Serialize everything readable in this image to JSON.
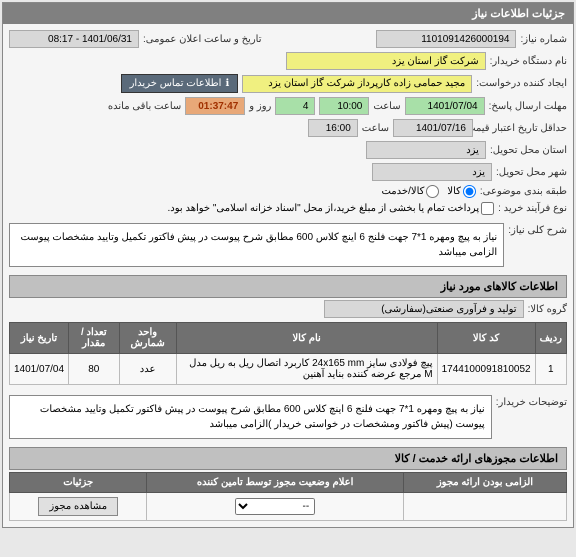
{
  "panel_title": "جزئیات اطلاعات نیاز",
  "labels": {
    "need_no": "شماره نیاز:",
    "pub_date": "تاریخ و ساعت اعلان عمومی:",
    "buyer": "نام دستگاه خریدار:",
    "requester": "ایجاد کننده درخواست:",
    "send_deadline": "مهلت ارسال پاسخ:",
    "validity_min": "حداقل تاریخ اعتبار قیمت تا تاریخ:",
    "delivery_prov": "استان محل تحویل:",
    "delivery_city": "شهر محل تحویل:",
    "subject_cat": "طبقه بندی موضوعی:",
    "buy_type": "نوع فرآیند خرید :",
    "hour": "ساعت",
    "day_and": "روز و",
    "remaining": "ساعت باقی مانده",
    "need_desc_title": "شرح کلی نیاز:",
    "goods_info_title": "اطلاعات کالاهای مورد نیاز",
    "goods_group": "گروه کالا:",
    "buyer_notes": "توضیحات خریدار:",
    "permits_title": "اطلاعات مجوزهای ارائه خدمت / کالا",
    "mandatory": "الزامی بودن ارائه مجوز",
    "permit_status": "اعلام وضعیت مجوز توسط تامین کننده",
    "details": "جزئیات",
    "view_permit": "مشاهده مجوز"
  },
  "fields": {
    "need_no": "1101091426000194",
    "pub_date": "1401/06/31 - 08:17",
    "buyer": "شرکت گاز استان یزد",
    "requester": "مجید حمامی زاده کارپرداز شرکت گاز استان یزد",
    "contact": "اطلاعات تماس خریدار",
    "deadline_date": "1401/07/04",
    "deadline_time": "10:00",
    "days_left": "4",
    "time_left": "01:37:47",
    "validity_date": "1401/07/16",
    "validity_time": "16:00",
    "province": "یزد",
    "city": "یزد",
    "goods_group": "تولید و فرآوری صنعتی(سفارشی)"
  },
  "radios": {
    "kala": "کالا",
    "khadmat": "کالا/خدمت"
  },
  "checkbox_text": "پرداخت تمام یا بخشی از مبلغ خرید،از محل \"اسناد خزانه اسلامی\" خواهد بود.",
  "need_desc": "نیاز به پیچ ومهره 1*7 جهت فلنج 6 اینچ کلاس 600 مطابق شرح پیوست در پیش فاکتور تکمیل وتایید مشخصات پیوست الزامی میباشد",
  "buyer_notes": "نیاز به پیچ ومهره 1*7 جهت فلنج 6 اینچ کلاس 600 مطابق شرح پیوست در پیش فاکتور تکمیل وتایید مشخصات پیوست (پیش فاکتور ومشخصات در خواستی خریدار )الزامی میباشد",
  "table": {
    "headers": [
      "ردیف",
      "کد کالا",
      "نام کالا",
      "واحد شمارش",
      "تعداد / مقدار",
      "تاریخ نیاز"
    ],
    "rows": [
      [
        "1",
        "1744100091810052",
        "پیچ فولادی سایز 24x165 mm کاربرد اتصال ریل به ریل مدل M مرجع عرضه کننده بناید آهنین",
        "عدد",
        "80",
        "1401/07/04"
      ]
    ]
  },
  "permit_table": {
    "row": {
      "mandatory": "",
      "status_sel": "--"
    }
  }
}
